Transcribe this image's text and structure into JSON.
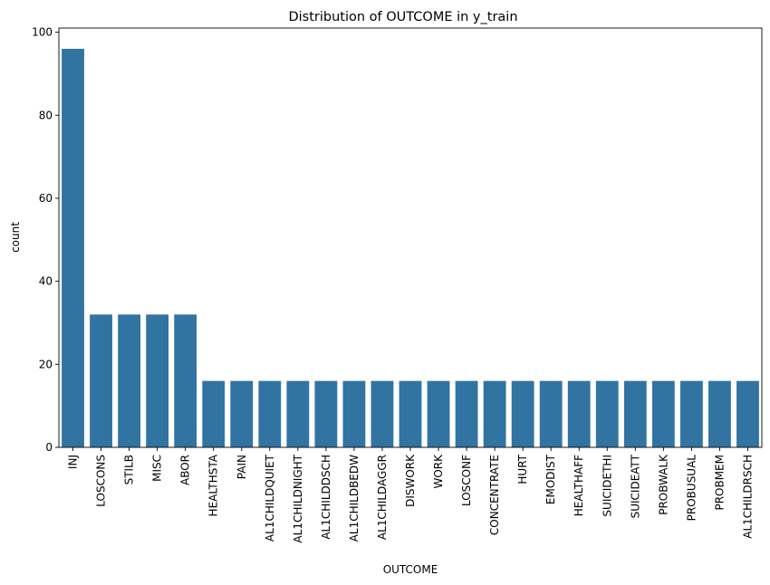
{
  "chart_data": {
    "type": "bar",
    "title": "Distribution of OUTCOME in y_train",
    "xlabel": "OUTCOME",
    "ylabel": "count",
    "ylim": [
      0,
      101
    ],
    "yticks": [
      0,
      20,
      40,
      60,
      80,
      100
    ],
    "grid": false,
    "bar_color": "#3274a1",
    "categories": [
      "INJ",
      "LOSCONS",
      "STILB",
      "MISC",
      "ABOR",
      "HEALTHSTA",
      "PAIN",
      "AL1CHILDQUIET",
      "AL1CHILDNIGHT",
      "AL1CHILDDSCH",
      "AL1CHILDBEDW",
      "AL1CHILDAGGR",
      "DISWORK",
      "WORK",
      "LOSCONF",
      "CONCENTRATE",
      "HURT",
      "EMODIST",
      "HEALTHAFF",
      "SUICIDETHI",
      "SUICIDEATT",
      "PROBWALK",
      "PROBUSUAL",
      "PROBMEM",
      "AL1CHILDRSCH"
    ],
    "values": [
      96,
      32,
      32,
      32,
      32,
      16,
      16,
      16,
      16,
      16,
      16,
      16,
      16,
      16,
      16,
      16,
      16,
      16,
      16,
      16,
      16,
      16,
      16,
      16,
      16
    ]
  }
}
